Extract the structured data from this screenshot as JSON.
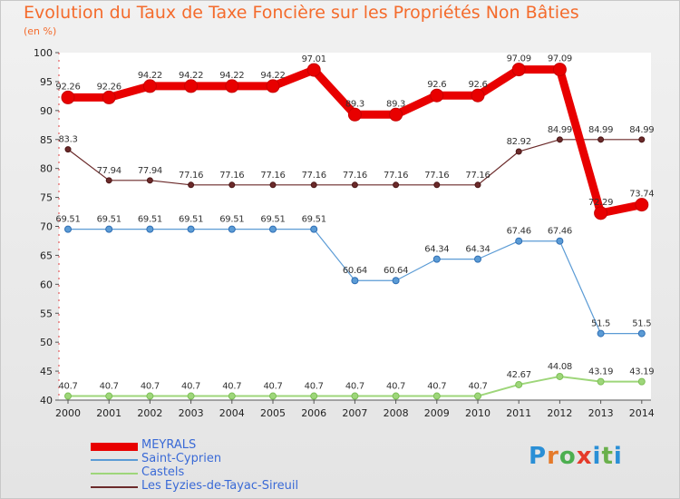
{
  "title": "Evolution du Taux de Taxe Foncière sur les Propriétés Non Bâties",
  "subtitle": "(en %)",
  "brand": {
    "letters": [
      "P",
      "r",
      "o",
      "x",
      "i",
      "t",
      "i"
    ],
    "colors": [
      "#2a8fd6",
      "#e57a2a",
      "#4caf50",
      "#e53a2a",
      "#2a8fd6",
      "#6ab04c",
      "#2a8fd6"
    ]
  },
  "chart_data": {
    "type": "line",
    "title": "Evolution du Taux de Taxe Foncière sur les Propriétés Non Bâties",
    "ylabel": "(en %)",
    "xlabel": "",
    "x": [
      "2000",
      "2001",
      "2002",
      "2003",
      "2004",
      "2005",
      "2006",
      "2007",
      "2008",
      "2009",
      "2010",
      "2011",
      "2012",
      "2013",
      "2014"
    ],
    "ylim": [
      40,
      100
    ],
    "yticks": [
      "40",
      "45",
      "50",
      "55",
      "60",
      "65",
      "70",
      "75",
      "80",
      "85",
      "90",
      "95",
      "100"
    ],
    "grid": false,
    "legend_position": "bottom-left",
    "series": [
      {
        "name": "MEYRALS",
        "color": "#e80000",
        "values": [
          92.26,
          92.26,
          94.22,
          94.22,
          94.22,
          94.22,
          97.01,
          89.3,
          89.3,
          92.6,
          92.6,
          97.09,
          97.09,
          72.29,
          73.74
        ],
        "labels": [
          "92.26",
          "92.26",
          "94.22",
          "94.22",
          "94.22",
          "94.22",
          "97.01",
          "89.3",
          "89.3",
          "92.6",
          "92.6",
          "97.09",
          "97.09",
          "72.29",
          "73.74"
        ]
      },
      {
        "name": "Saint-Cyprien",
        "color": "#5b9bd5",
        "values": [
          69.51,
          69.51,
          69.51,
          69.51,
          69.51,
          69.51,
          69.51,
          60.64,
          60.64,
          64.34,
          64.34,
          67.46,
          67.46,
          51.5,
          51.5
        ],
        "labels": [
          "69.51",
          "69.51",
          "69.51",
          "69.51",
          "69.51",
          "69.51",
          "69.51",
          "60.64",
          "60.64",
          "64.34",
          "64.34",
          "67.46",
          "67.46",
          "51.5",
          "51.5"
        ]
      },
      {
        "name": "Castels",
        "color": "#9ed67a",
        "values": [
          40.7,
          40.7,
          40.7,
          40.7,
          40.7,
          40.7,
          40.7,
          40.7,
          40.7,
          40.7,
          40.7,
          42.67,
          44.08,
          43.19,
          43.19
        ],
        "labels": [
          "40.7",
          "40.7",
          "40.7",
          "40.7",
          "40.7",
          "40.7",
          "40.7",
          "40.7",
          "40.7",
          "40.7",
          "40.7",
          "42.67",
          "44.08",
          "43.19",
          "43.19"
        ]
      },
      {
        "name": "Les Eyzies-de-Tayac-Sireuil",
        "color": "#6b2a2a",
        "values": [
          83.3,
          77.94,
          77.94,
          77.16,
          77.16,
          77.16,
          77.16,
          77.16,
          77.16,
          77.16,
          77.16,
          82.92,
          84.99,
          84.99,
          84.99
        ],
        "labels": [
          "83.3",
          "77.94",
          "77.94",
          "77.16",
          "77.16",
          "77.16",
          "77.16",
          "77.16",
          "77.16",
          "77.16",
          "77.16",
          "82.92",
          "84.99",
          "84.99",
          "84.99"
        ]
      }
    ]
  }
}
